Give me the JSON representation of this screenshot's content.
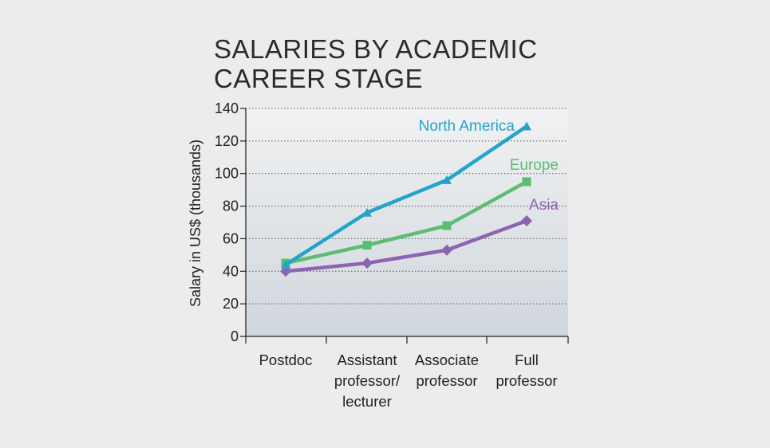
{
  "title": "SALARIES BY ACADEMIC CAREER STAGE",
  "chart_data": {
    "type": "line",
    "title": "SALARIES BY ACADEMIC CAREER STAGE",
    "xlabel": "",
    "ylabel": "Salary in US$ (thousands)",
    "ylim": [
      0,
      140
    ],
    "yticks": [
      0,
      20,
      40,
      60,
      80,
      100,
      120,
      140
    ],
    "ytick_labels": [
      "0",
      "20",
      "40",
      "60",
      "80",
      "100",
      "120",
      "140"
    ],
    "categories": [
      [
        "Postdoc"
      ],
      [
        "Assistant",
        "professor/",
        "lecturer"
      ],
      [
        "Associate",
        "professor"
      ],
      [
        "Full",
        "professor"
      ]
    ],
    "grid": "horizontal dotted",
    "legend": "inline labels at line ends",
    "series": [
      {
        "name": "North America",
        "color": "#25a3c9",
        "marker": "triangle",
        "values": [
          44,
          76,
          96,
          129
        ]
      },
      {
        "name": "Europe",
        "color": "#5cbd72",
        "marker": "square",
        "values": [
          45,
          56,
          68,
          95
        ]
      },
      {
        "name": "Asia",
        "color": "#8e63b0",
        "marker": "diamond",
        "values": [
          40,
          45,
          53,
          71
        ]
      }
    ]
  }
}
